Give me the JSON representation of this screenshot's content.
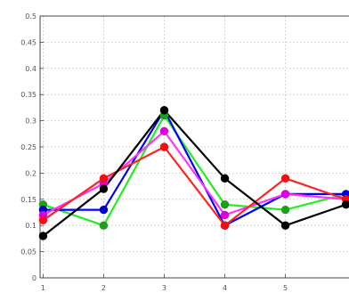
{
  "chart_data": {
    "type": "line",
    "x": [
      1,
      2,
      3,
      4,
      5,
      6
    ],
    "x_tick_labels": [
      "1",
      "2",
      "3",
      "4",
      "5"
    ],
    "y_tick_labels": [
      "0",
      "0.05",
      "0.1",
      "0.15",
      "0.2",
      "0.25",
      "0.3",
      "0.35",
      "0.4",
      "0.45",
      "0.5"
    ],
    "xlim": [
      0.95,
      6.05
    ],
    "ylim": [
      0,
      0.5
    ],
    "grid": true,
    "series": [
      {
        "color": "#1aa01a",
        "line_color": "#22ee22",
        "values": [
          0.14,
          0.1,
          0.31,
          0.14,
          0.13,
          0.16
        ]
      },
      {
        "color": "#0000cc",
        "line_color": "#0000ff",
        "values": [
          0.13,
          0.13,
          0.32,
          0.1,
          0.16,
          0.16
        ]
      },
      {
        "color": "#dd00dd",
        "line_color": "#ff33ff",
        "values": [
          0.12,
          0.18,
          0.28,
          0.12,
          0.16,
          0.15
        ]
      },
      {
        "color": "#ee1111",
        "line_color": "#ff2222",
        "values": [
          0.11,
          0.19,
          0.25,
          0.1,
          0.19,
          0.15
        ]
      },
      {
        "color": "#000000",
        "line_color": "#000000",
        "values": [
          0.08,
          0.17,
          0.32,
          0.19,
          0.1,
          0.14
        ]
      }
    ]
  }
}
